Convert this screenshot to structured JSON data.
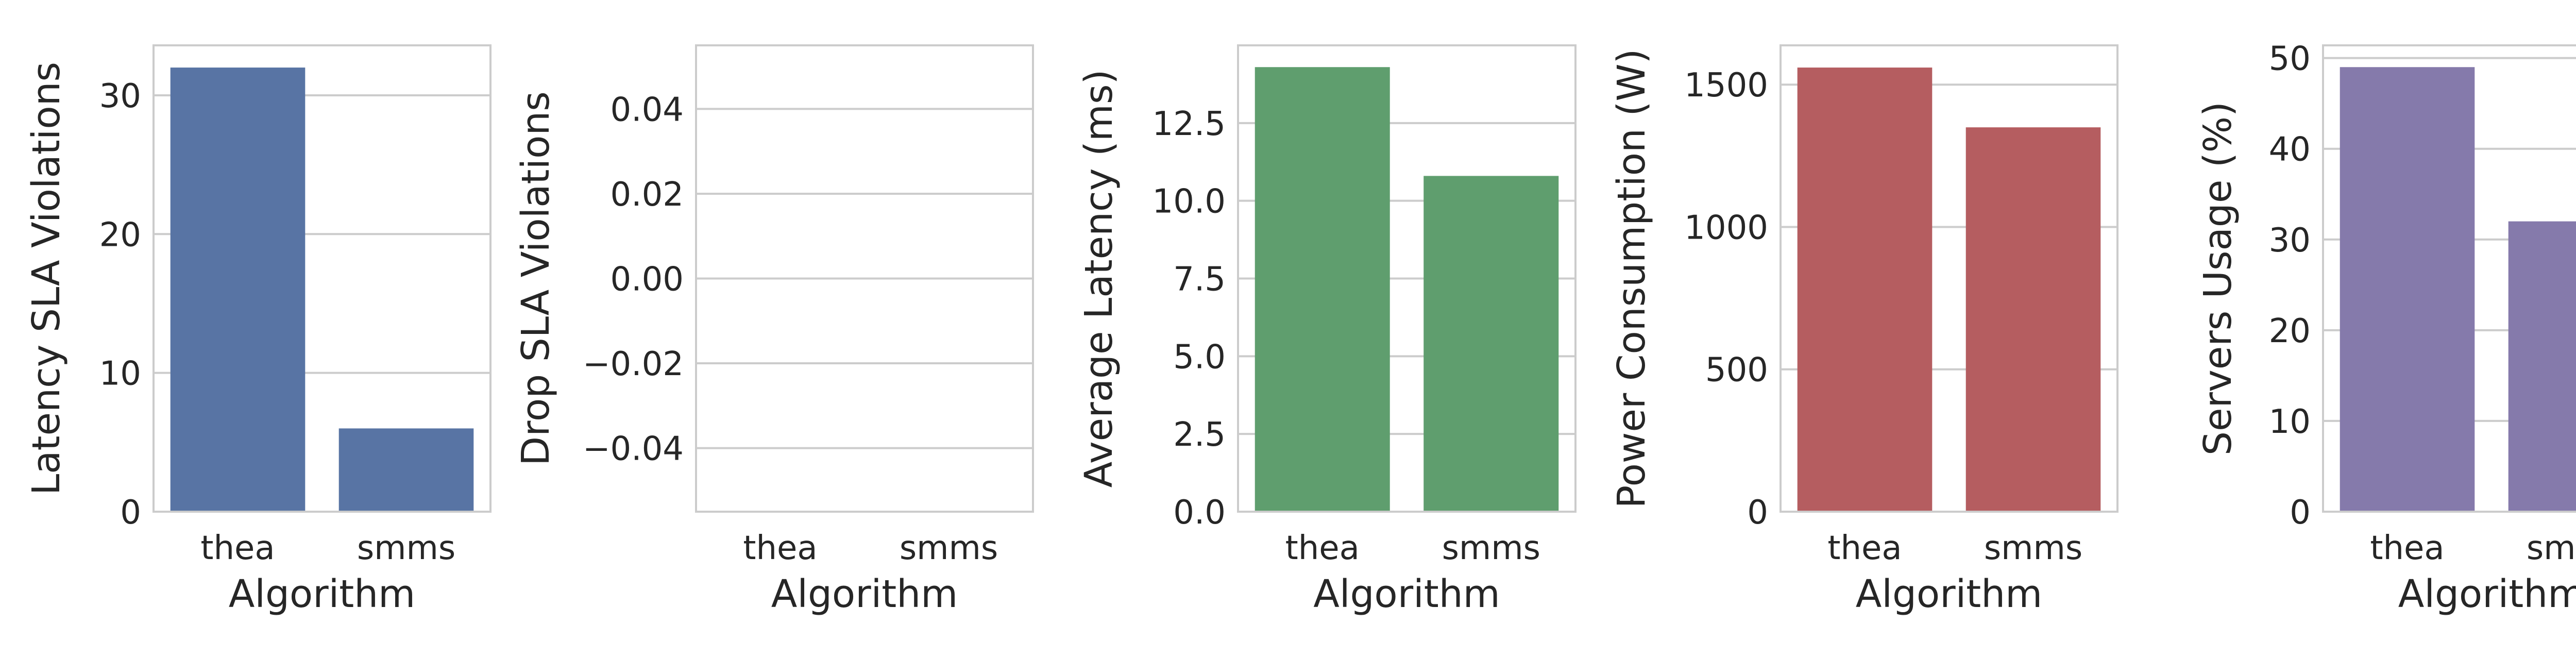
{
  "chart_data": [
    {
      "type": "bar",
      "categories": [
        "thea",
        "smms"
      ],
      "values": [
        32,
        6
      ],
      "xlabel": "Algorithm",
      "ylabel": "Latency SLA Violations",
      "ylim": [
        0,
        33.6
      ],
      "yticks": [
        0,
        10,
        20,
        30
      ],
      "ytick_labels": [
        "0",
        "10",
        "20",
        "30"
      ],
      "color": "#5874a4",
      "grid": "horizontal"
    },
    {
      "type": "bar",
      "categories": [
        "thea",
        "smms"
      ],
      "values": [
        0,
        0
      ],
      "xlabel": "Algorithm",
      "ylabel": "Drop SLA Violations",
      "ylim": [
        -0.055,
        0.055
      ],
      "yticks": [
        -0.04,
        -0.02,
        0.0,
        0.02,
        0.04
      ],
      "ytick_labels": [
        "−0.04",
        "−0.02",
        "0.00",
        "0.02",
        "0.04"
      ],
      "color": "#dd8452",
      "grid": "horizontal"
    },
    {
      "type": "bar",
      "categories": [
        "thea",
        "smms"
      ],
      "values": [
        14.3,
        10.8
      ],
      "xlabel": "Algorithm",
      "ylabel": "Average Latency (ms)",
      "ylim": [
        0,
        15.0
      ],
      "yticks": [
        0,
        2.5,
        5.0,
        7.5,
        10.0,
        12.5
      ],
      "ytick_labels": [
        "0.0",
        "2.5",
        "5.0",
        "7.5",
        "10.0",
        "12.5"
      ],
      "color": "#5f9e6e",
      "grid": "horizontal"
    },
    {
      "type": "bar",
      "categories": [
        "thea",
        "smms"
      ],
      "values": [
        1560,
        1350
      ],
      "xlabel": "Algorithm",
      "ylabel": "Power Consumption (W)",
      "ylim": [
        0,
        1638
      ],
      "yticks": [
        0,
        500,
        1000,
        1500
      ],
      "ytick_labels": [
        "0",
        "500",
        "1000",
        "1500"
      ],
      "color": "#b55d60",
      "grid": "horizontal"
    },
    {
      "type": "bar",
      "categories": [
        "thea",
        "smms"
      ],
      "values": [
        49,
        32
      ],
      "xlabel": "Algorithm",
      "ylabel": "Servers Usage (%)",
      "ylim": [
        0,
        51.4
      ],
      "yticks": [
        0,
        10,
        20,
        30,
        40,
        50
      ],
      "ytick_labels": [
        "0",
        "10",
        "20",
        "30",
        "40",
        "50"
      ],
      "color": "#857aab",
      "grid": "horizontal"
    }
  ]
}
